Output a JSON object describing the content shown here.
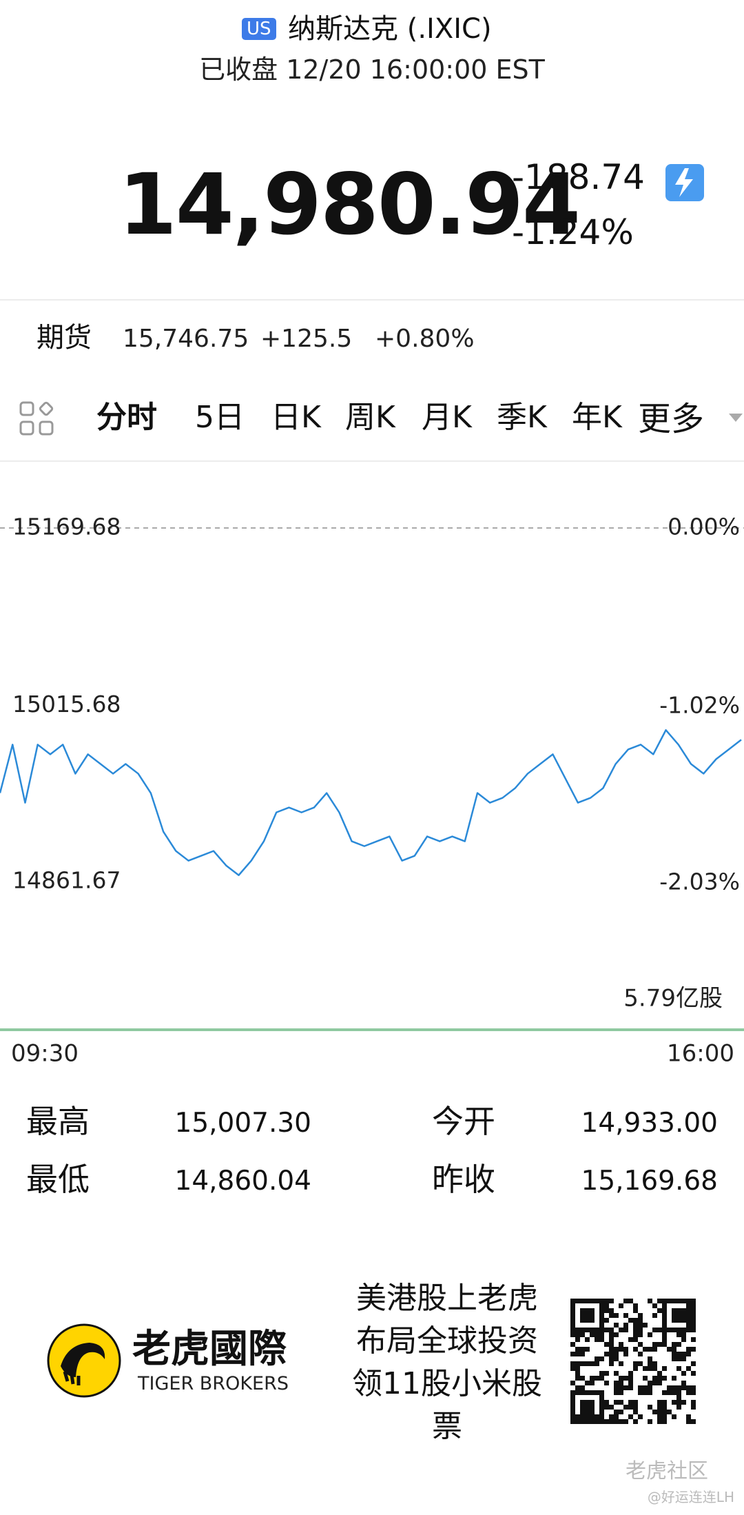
{
  "header": {
    "badge": "US",
    "title": "纳斯达克 (.IXIC)",
    "status": "已收盘 12/20 16:00:00 EST"
  },
  "quote": {
    "price": "14,980.94",
    "change": "-188.74",
    "change_pct": "-1.24%"
  },
  "futures": {
    "label": "期货",
    "price": "15,746.75",
    "change": "+125.5",
    "change_pct": "+0.80%"
  },
  "tabs": [
    "分时",
    "5日",
    "日K",
    "周K",
    "月K",
    "季K",
    "年K",
    "更多"
  ],
  "chart_data": {
    "type": "line",
    "color": "#2b8ad8",
    "values": [
      14939.7,
      14981.7,
      14931.3,
      14981.7,
      14973.3,
      14981.7,
      14956.5,
      14973.3,
      14964.9,
      14956.5,
      14964.9,
      14956.5,
      14939.7,
      14906.2,
      14889.4,
      14881,
      14885.2,
      14889.4,
      14876.8,
      14868.4,
      14881,
      14897.8,
      14922.9,
      14927.1,
      14922.9,
      14927.1,
      14939.7,
      14922.9,
      14897.8,
      14893.6,
      14897.8,
      14902,
      14881,
      14885.2,
      14902,
      14897.8,
      14902,
      14897.8,
      14939.7,
      14931.3,
      14935.5,
      14943.9,
      14956.5,
      14964.9,
      14973.3,
      14952.3,
      14931.3,
      14935.5,
      14943.9,
      14964.9,
      14977.5,
      14981.7,
      14973.3,
      14994.3,
      14981.7,
      14964.9,
      14956.5,
      14969.1,
      14977.5,
      14985.9
    ],
    "ylim": [
      14861.67,
      15169.68
    ],
    "yticks": [
      15169.68,
      15015.68,
      14861.67
    ],
    "y2lim": [
      -2.03,
      0
    ],
    "y2ticks": [
      {
        "value": 0,
        "label": "0.00%"
      },
      {
        "value": -1.02,
        "label": "-1.02%"
      },
      {
        "value": -2.03,
        "label": "-2.03%"
      }
    ],
    "x_labels": [
      "09:30",
      "16:00"
    ],
    "volume_label": "5.79亿股"
  },
  "stats": [
    [
      {
        "label": "最高",
        "value": "15,007.30"
      },
      {
        "label": "今开",
        "value": "14,933.00"
      }
    ],
    [
      {
        "label": "最低",
        "value": "14,860.04"
      },
      {
        "label": "昨收",
        "value": "15,169.68"
      }
    ]
  ],
  "footer": {
    "brand": "老虎國際",
    "brand_en": "TIGER BROKERS",
    "promo": [
      "美港股上老虎",
      "布局全球投资",
      "领11股小米股",
      "票"
    ],
    "watermark": "老虎社区",
    "author": "@好运连连LH"
  }
}
